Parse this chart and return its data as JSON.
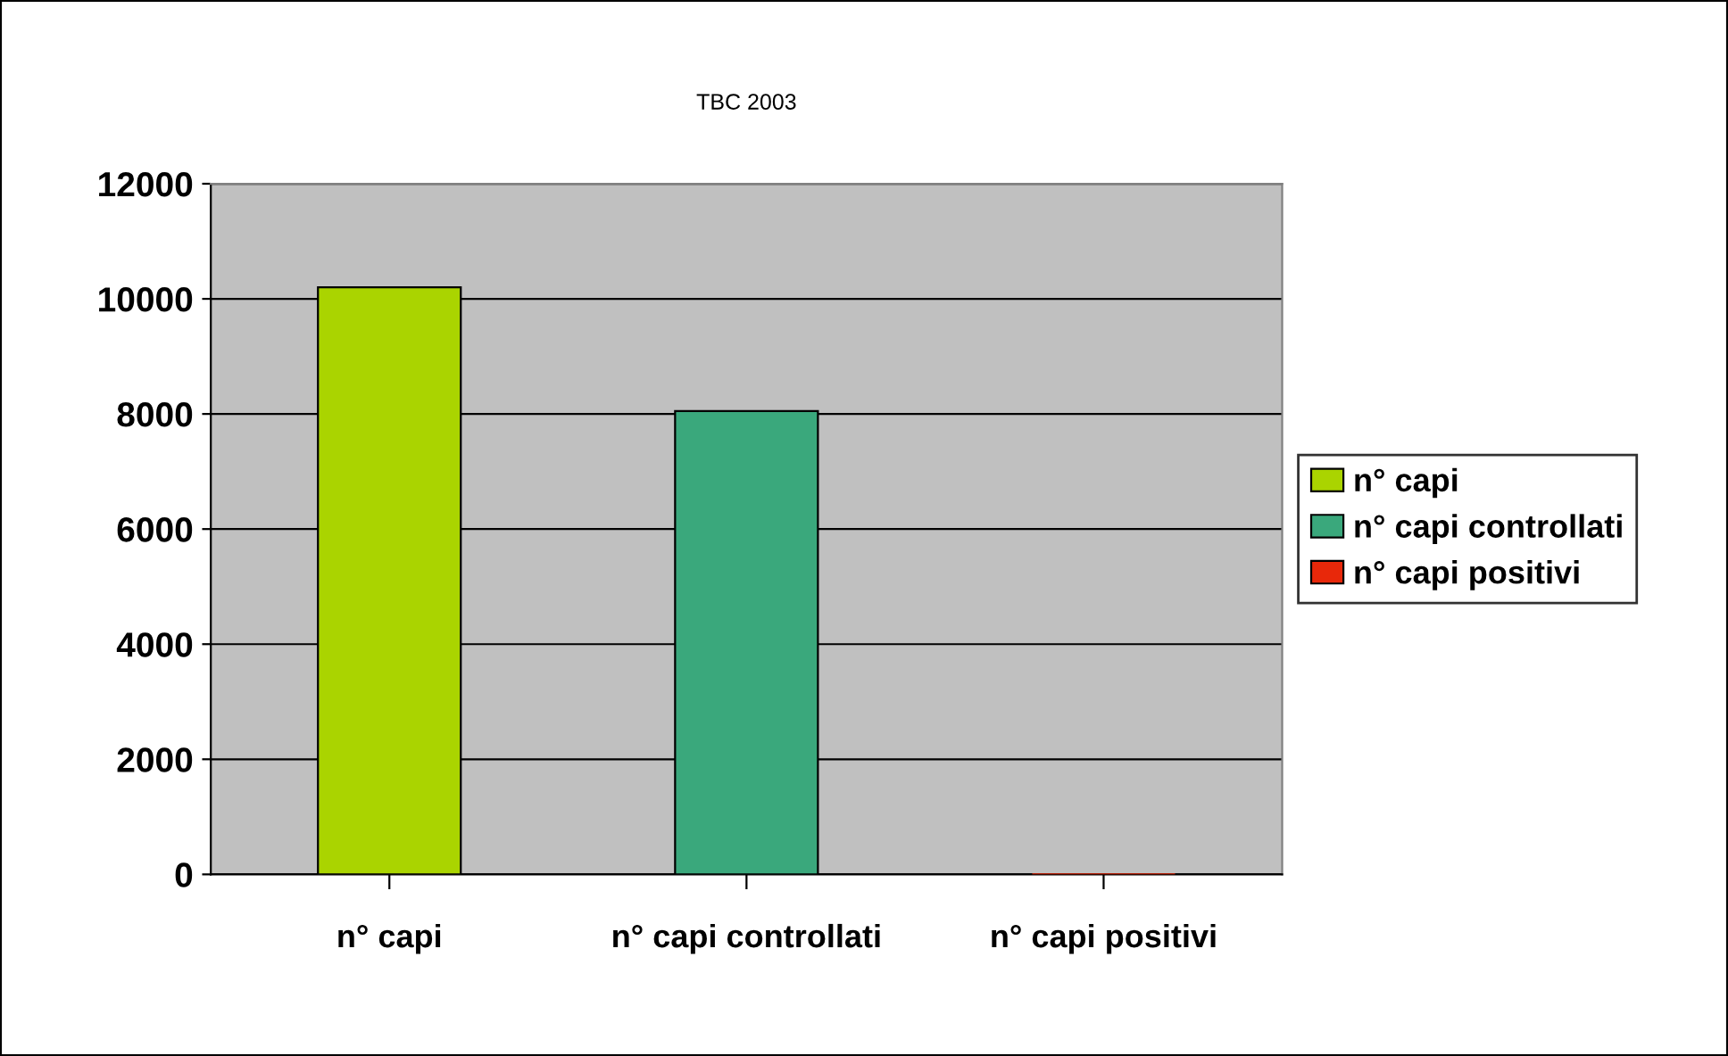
{
  "chart_data": {
    "type": "bar",
    "title": "TBC 2003",
    "stacked": true,
    "categories": [
      "n° capi",
      "n° capi controllati",
      "n° capi positivi"
    ],
    "series": [
      {
        "name": "n° capi",
        "color": "#aad400",
        "values": [
          10200,
          null,
          null
        ]
      },
      {
        "name": "n° capi controllati",
        "color": "#3aa87c",
        "values": [
          null,
          8050,
          null
        ]
      },
      {
        "name": "n° capi positivi",
        "color": "#e8280a",
        "values": [
          null,
          null,
          0
        ]
      }
    ],
    "ylim": [
      0,
      12000
    ],
    "yticks": [
      0,
      2000,
      4000,
      6000,
      8000,
      10000,
      12000
    ],
    "grid": "y",
    "legend": "right"
  }
}
